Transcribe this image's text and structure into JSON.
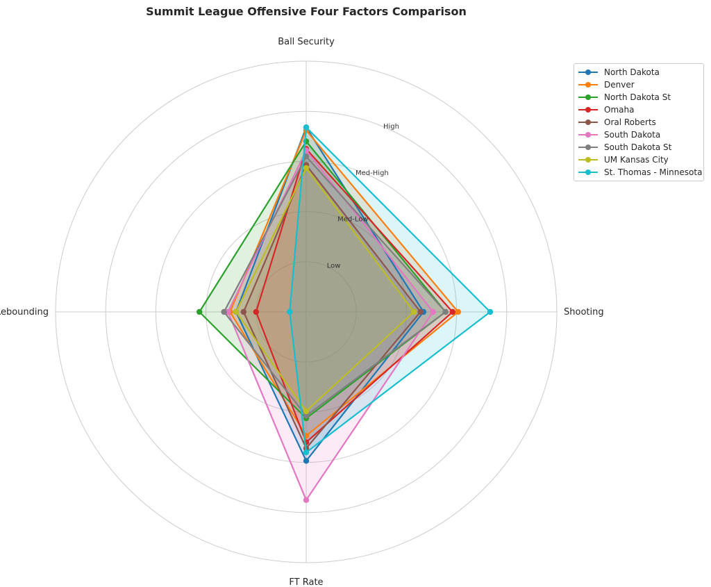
{
  "chart_data": {
    "type": "radar",
    "title": "Summit League Offensive Four Factors Comparison",
    "axes": [
      "Ball Security",
      "Shooting",
      "FT Rate",
      "Off Rebounding"
    ],
    "rings": [
      {
        "value": 1,
        "label": "Low"
      },
      {
        "value": 2,
        "label": "Med-Low"
      },
      {
        "value": 3,
        "label": "Med-High"
      },
      {
        "value": 4,
        "label": "High"
      }
    ],
    "rmax": 5,
    "grid": true,
    "legend_position": "top-right",
    "series": [
      {
        "name": "North Dakota",
        "color": "#1f77b4",
        "values": [
          3.68,
          2.34,
          2.97,
          1.4
        ]
      },
      {
        "name": "Denver",
        "color": "#ff7f0e",
        "values": [
          3.62,
          3.03,
          2.47,
          1.52
        ]
      },
      {
        "name": "North Dakota St",
        "color": "#2ca02c",
        "values": [
          3.4,
          2.78,
          2.12,
          2.13
        ]
      },
      {
        "name": "Omaha",
        "color": "#d62728",
        "values": [
          3.25,
          2.92,
          2.6,
          1.0
        ]
      },
      {
        "name": "Oral Roberts",
        "color": "#8c564b",
        "values": [
          2.93,
          2.28,
          2.72,
          1.25
        ]
      },
      {
        "name": "South Dakota",
        "color": "#e377c2",
        "values": [
          3.22,
          2.53,
          3.75,
          1.56
        ]
      },
      {
        "name": "South Dakota St",
        "color": "#7f7f7f",
        "values": [
          3.1,
          2.78,
          2.07,
          1.64
        ]
      },
      {
        "name": "UM Kansas City",
        "color": "#bcbd22",
        "values": [
          2.87,
          2.15,
          1.98,
          1.4
        ]
      },
      {
        "name": "St. Thomas - Minnesota",
        "color": "#17becf",
        "values": [
          3.68,
          3.67,
          2.8,
          0.33
        ]
      }
    ]
  }
}
